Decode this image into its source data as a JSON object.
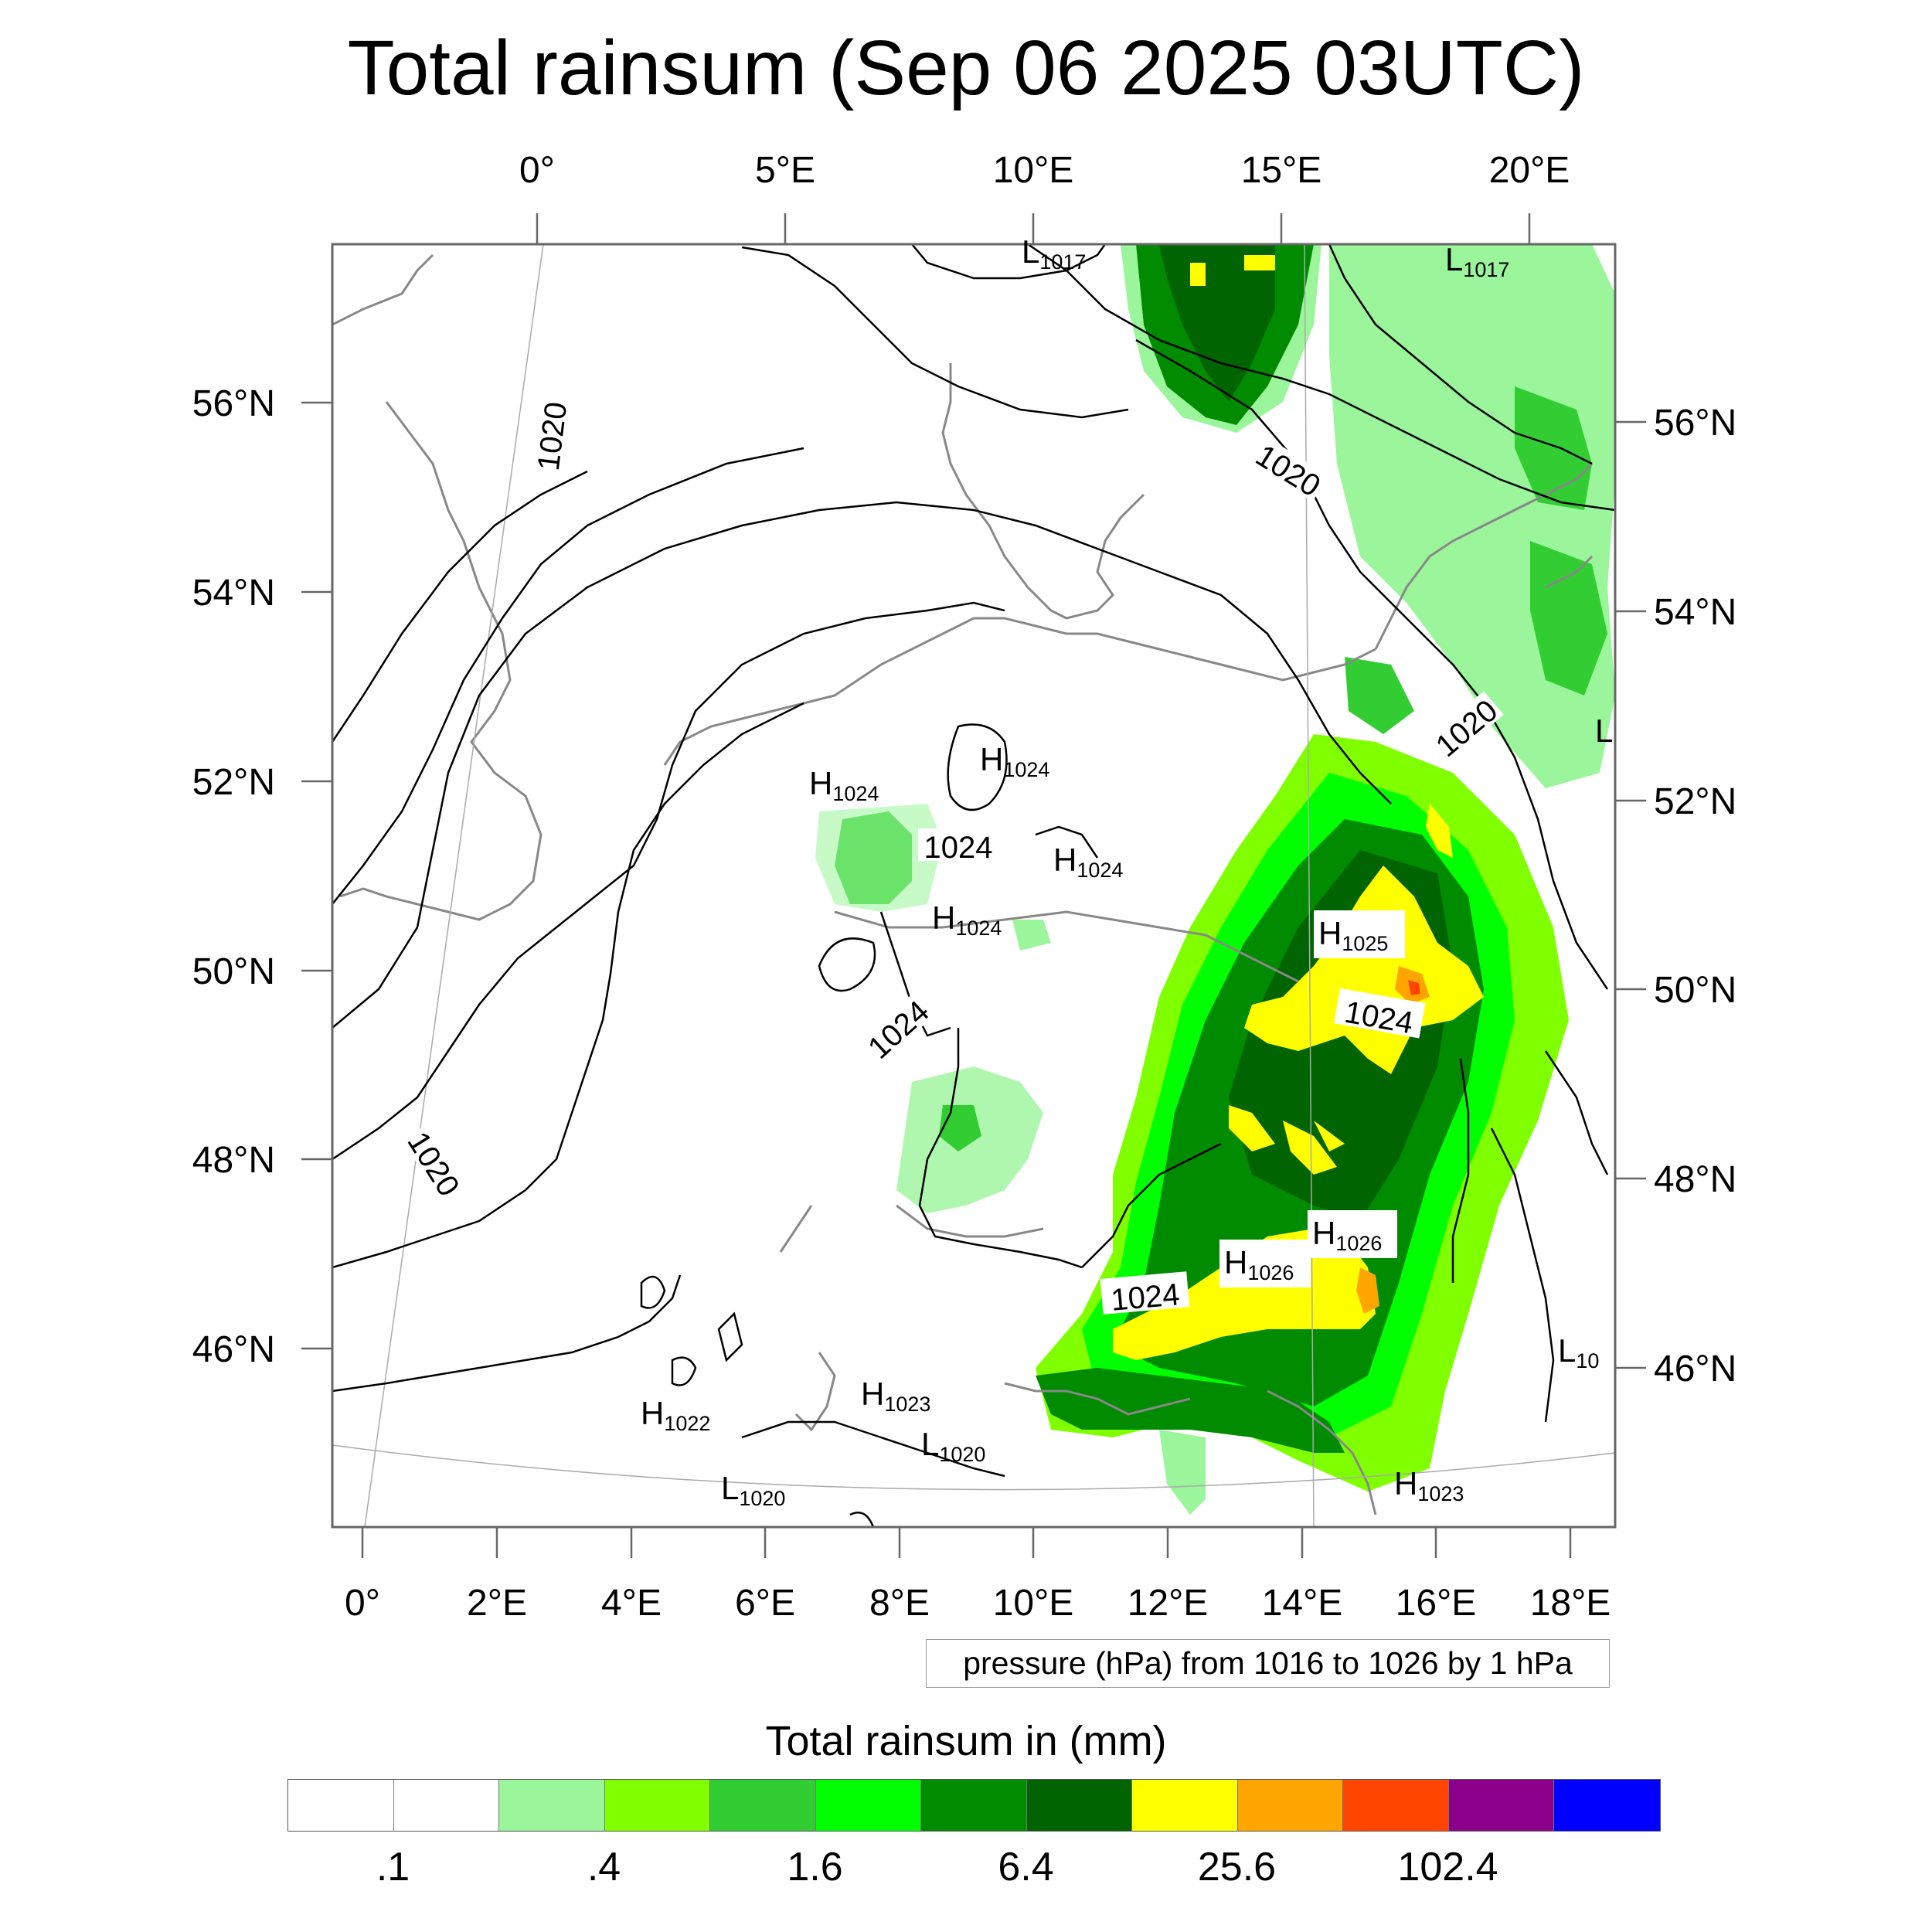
{
  "title": "Total rainsum (Sep 06 2025 03UTC)",
  "map": {
    "region": "Central Europe",
    "top_longitude_labels": [
      "0°",
      "5°E",
      "10°E",
      "15°E",
      "20°E"
    ],
    "bottom_longitude_labels": [
      "0°",
      "2°E",
      "4°E",
      "6°E",
      "8°E",
      "10°E",
      "12°E",
      "14°E",
      "16°E",
      "18°E"
    ],
    "left_latitude_labels": [
      "56°N",
      "54°N",
      "52°N",
      "50°N",
      "48°N",
      "46°N"
    ],
    "right_latitude_labels": [
      "56°N",
      "54°N",
      "52°N",
      "50°N",
      "48°N",
      "46°N"
    ],
    "isobar_labels": [
      "1020",
      "1020",
      "1020",
      "1020",
      "1024",
      "1024",
      "1024",
      "1024"
    ],
    "pressure_centers": [
      {
        "type": "L",
        "value": "1017"
      },
      {
        "type": "L",
        "value": "1017"
      },
      {
        "type": "L",
        "value": ""
      },
      {
        "type": "H",
        "value": "1024"
      },
      {
        "type": "H",
        "value": "1024"
      },
      {
        "type": "H",
        "value": "1024"
      },
      {
        "type": "H",
        "value": "1024"
      },
      {
        "type": "H",
        "value": "1025"
      },
      {
        "type": "H",
        "value": "1026"
      },
      {
        "type": "H",
        "value": "1026"
      },
      {
        "type": "H",
        "value": "1022"
      },
      {
        "type": "H",
        "value": "1023"
      },
      {
        "type": "L",
        "value": "1020"
      },
      {
        "type": "L",
        "value": "1020"
      },
      {
        "type": "H",
        "value": "1023"
      },
      {
        "type": "L",
        "value": "10"
      }
    ]
  },
  "info_text": "pressure (hPa) from 1016 to 1026 by 1 hPa",
  "colorbar": {
    "title": "Total rainsum in (mm)",
    "colors": [
      "#ffffff",
      "#ffffff",
      "#9bf59b",
      "#80ff00",
      "#32cd32",
      "#00ff00",
      "#008b00",
      "#006400",
      "#ffff00",
      "#ffa500",
      "#ff4500",
      "#8b008b",
      "#0000ff"
    ],
    "tick_labels": [
      ".1",
      ".4",
      "1.6",
      "6.4",
      "25.6",
      "102.4"
    ]
  },
  "palette": {
    "light_green": "#9bf59b",
    "chartreuse": "#80ff00",
    "lime_green": "#32cd32",
    "bright_green": "#00ff00",
    "green": "#008b00",
    "dark_green": "#006400",
    "yellow": "#ffff00",
    "orange": "#ffa500",
    "orange_red": "#ff4500"
  }
}
